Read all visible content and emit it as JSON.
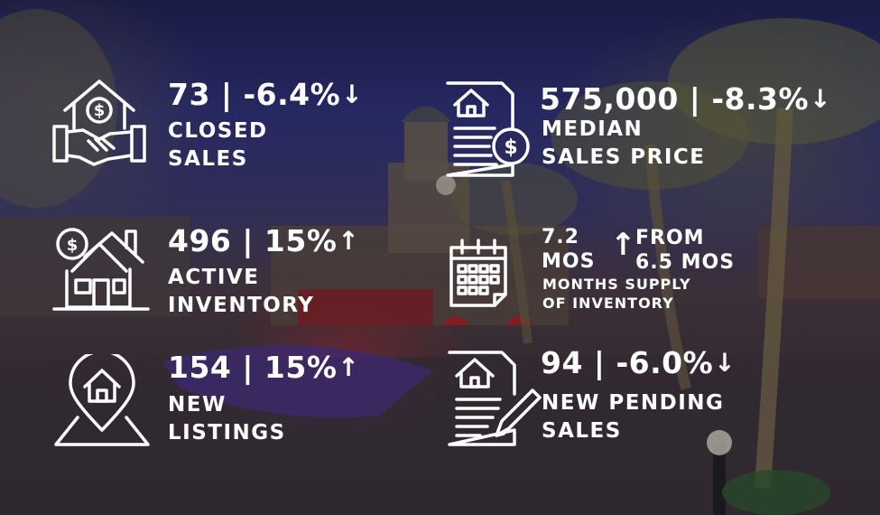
{
  "background": {
    "description_colors": {
      "sky": "#2c2f74",
      "ground": "#3a3036",
      "accent_red": "#a02828",
      "pool_purple": "#7846c8"
    }
  },
  "stats": {
    "closed_sales": {
      "value": "73 | -6.4%",
      "trend": "down",
      "arrow": "↓",
      "label_lines": [
        "CLOSED",
        "SALES"
      ],
      "icon": "house-handshake-dollar-icon"
    },
    "median_price": {
      "value": "575,000 | -8.3%",
      "trend": "down",
      "arrow": "↓",
      "label_lines": [
        "MEDIAN",
        "SALES PRICE"
      ],
      "icon": "document-house-dollar-icon"
    },
    "active_inventory": {
      "value": "496 | 15%",
      "trend": "up",
      "arrow": "↑",
      "label_lines": [
        "ACTIVE",
        "INVENTORY"
      ],
      "icon": "house-dollar-sign-icon"
    },
    "months_supply": {
      "value_line1": "7.2",
      "value_line2": "MOS",
      "trend": "up",
      "arrow": "↑",
      "from_line1": "FROM",
      "from_line2": "6.5 MOS",
      "label_lines": [
        "MONTHS SUPPLY",
        "OF INVENTORY"
      ],
      "icon": "calendar-icon"
    },
    "new_listings": {
      "value": "154 | 15%",
      "trend": "up",
      "arrow": "↑",
      "label_lines": [
        "NEW",
        "LISTINGS"
      ],
      "icon": "map-pin-house-icon"
    },
    "new_pending": {
      "value": "94 | -6.0%",
      "trend": "down",
      "arrow": "↓",
      "label_lines": [
        "NEW PENDING",
        "SALES"
      ],
      "icon": "document-house-pen-icon"
    }
  }
}
